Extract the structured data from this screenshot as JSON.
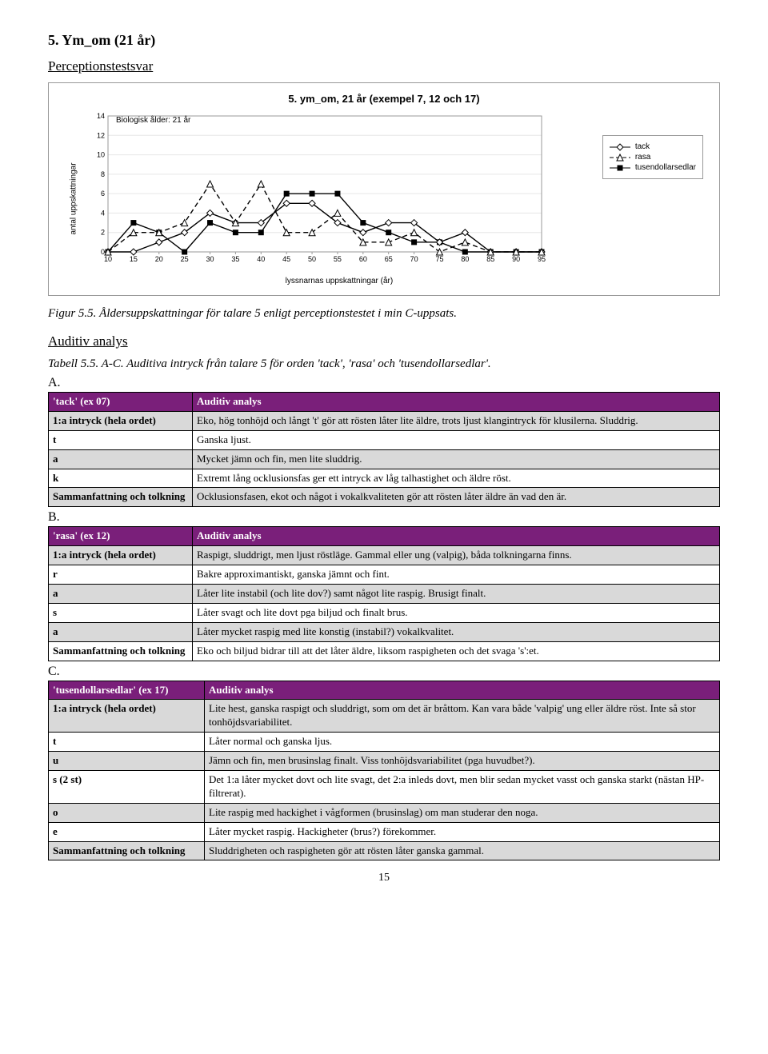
{
  "section": {
    "num": "5. Ym_om (21 år)",
    "percept": "Perceptionstestsvar"
  },
  "chart": {
    "title": "5. ym_om, 21 år (exempel 7, 12 och 17)",
    "bio": "Biologisk ålder: 21 år",
    "ylabel": "antal uppskattningar",
    "xlabel": "lyssnarnas uppskattningar (år)",
    "ytick_labels": [
      "0",
      "2",
      "4",
      "6",
      "8",
      "10",
      "12",
      "14"
    ],
    "xtick_labels": [
      "10",
      "15",
      "20",
      "25",
      "30",
      "35",
      "40",
      "45",
      "50",
      "55",
      "60",
      "65",
      "70",
      "75",
      "80",
      "85",
      "90",
      "95"
    ],
    "ylim": [
      0,
      14
    ],
    "yticks": [
      0,
      2,
      4,
      6,
      8,
      10,
      12,
      14
    ],
    "xlim": [
      10,
      95
    ],
    "xticks": [
      10,
      15,
      20,
      25,
      30,
      35,
      40,
      45,
      50,
      55,
      60,
      65,
      70,
      75,
      80,
      85,
      90,
      95
    ],
    "series": {
      "tack": {
        "label": "tack",
        "color": "#000",
        "dash": "none",
        "marker": "diamond",
        "data": [
          [
            10,
            0
          ],
          [
            15,
            0
          ],
          [
            20,
            1
          ],
          [
            25,
            2
          ],
          [
            30,
            4
          ],
          [
            35,
            3
          ],
          [
            40,
            3
          ],
          [
            45,
            5
          ],
          [
            50,
            5
          ],
          [
            55,
            3
          ],
          [
            60,
            2
          ],
          [
            65,
            3
          ],
          [
            70,
            3
          ],
          [
            75,
            1
          ],
          [
            80,
            2
          ],
          [
            85,
            0
          ],
          [
            90,
            0
          ],
          [
            95,
            0
          ]
        ]
      },
      "rasa": {
        "label": "rasa",
        "color": "#000",
        "dash": "6,4",
        "marker": "triangle",
        "data": [
          [
            10,
            0
          ],
          [
            15,
            2
          ],
          [
            20,
            2
          ],
          [
            25,
            3
          ],
          [
            30,
            7
          ],
          [
            35,
            3
          ],
          [
            40,
            7
          ],
          [
            45,
            2
          ],
          [
            50,
            2
          ],
          [
            55,
            4
          ],
          [
            60,
            1
          ],
          [
            65,
            1
          ],
          [
            70,
            2
          ],
          [
            75,
            0
          ],
          [
            80,
            1
          ],
          [
            85,
            0
          ],
          [
            90,
            0
          ],
          [
            95,
            0
          ]
        ]
      },
      "tusen": {
        "label": "tusendollarsedlar",
        "color": "#000",
        "dash": "none",
        "marker": "square",
        "data": [
          [
            10,
            0
          ],
          [
            15,
            3
          ],
          [
            20,
            2
          ],
          [
            25,
            0
          ],
          [
            30,
            3
          ],
          [
            35,
            2
          ],
          [
            40,
            2
          ],
          [
            45,
            6
          ],
          [
            50,
            6
          ],
          [
            55,
            6
          ],
          [
            60,
            3
          ],
          [
            65,
            2
          ],
          [
            70,
            1
          ],
          [
            75,
            1
          ],
          [
            80,
            0
          ],
          [
            85,
            0
          ],
          [
            90,
            0
          ],
          [
            95,
            0
          ]
        ]
      }
    },
    "bg": "#ffffff",
    "grid": "#e6e6e6",
    "axis": "#999"
  },
  "fig_caption": "Figur 5.5. Åldersuppskattningar för talare 5 enligt perceptionstestet i min C-uppsats.",
  "auditiv_heading": "Auditiv analys",
  "tbl_caption": "Tabell 5.5. A-C. Auditiva intryck från talare 5 för orden 'tack', 'rasa' och 'tusendollarsedlar'.",
  "tableA": {
    "letter": "A.",
    "hdr": [
      "'tack' (ex 07)",
      "Auditiv analys"
    ],
    "rows": [
      [
        "1:a intryck (hela ordet)",
        "Eko, hög tonhöjd och långt 't' gör att rösten låter lite äldre, trots ljust klangintryck för klusilerna. Sluddrig."
      ],
      [
        "t",
        "Ganska ljust."
      ],
      [
        "a",
        "Mycket jämn och fin, men lite sluddrig."
      ],
      [
        "k",
        "Extremt lång ocklusionsfas ger ett intryck av låg talhastighet och äldre röst."
      ],
      [
        "Sammanfattning och tolkning",
        "Ocklusionsfasen, ekot och något i vokalkvaliteten gör att rösten låter äldre än vad den är."
      ]
    ]
  },
  "tableB": {
    "letter": "B.",
    "hdr": [
      "'rasa' (ex 12)",
      "Auditiv analys"
    ],
    "rows": [
      [
        "1:a intryck (hela ordet)",
        "Raspigt, sluddrigt, men ljust röstläge. Gammal eller ung (valpig), båda tolkningarna finns."
      ],
      [
        "r",
        "Bakre approximantiskt, ganska jämnt och fint."
      ],
      [
        "a",
        "Låter lite instabil (och lite dov?) samt något lite raspig. Brusigt finalt."
      ],
      [
        "s",
        "Låter svagt och lite dovt pga biljud och finalt brus."
      ],
      [
        "a",
        "Låter mycket raspig med lite konstig (instabil?) vokalkvalitet."
      ],
      [
        "Sammanfattning och tolkning",
        "Eko och biljud bidrar till att det låter äldre, liksom raspigheten och det svaga 's':et."
      ]
    ]
  },
  "tableC": {
    "letter": "C.",
    "hdr": [
      "'tusendollarsedlar' (ex 17)",
      "Auditiv analys"
    ],
    "rows": [
      [
        "1:a intryck (hela ordet)",
        "Lite hest, ganska raspigt och sluddrigt, som om det är bråttom. Kan vara både 'valpig' ung eller äldre röst. Inte så stor tonhöjdsvariabilitet."
      ],
      [
        "t",
        "Låter normal och ganska ljus."
      ],
      [
        "u",
        "Jämn och fin, men brusinslag finalt. Viss tonhöjdsvariabilitet (pga huvudbet?)."
      ],
      [
        "s (2 st)",
        "Det 1:a låter mycket dovt och lite svagt, det 2:a inleds dovt, men blir sedan mycket vasst och ganska starkt (nästan HP-filtrerat)."
      ],
      [
        "o",
        "Lite raspig med hackighet i vågformen (brusinslag) om man studerar den noga."
      ],
      [
        "e",
        "Låter mycket raspig. Hackigheter (brus?) förekommer."
      ],
      [
        "Sammanfattning och tolkning",
        "Sluddrigheten och raspigheten gör att rösten låter ganska gammal."
      ]
    ]
  },
  "pagenum": "15"
}
